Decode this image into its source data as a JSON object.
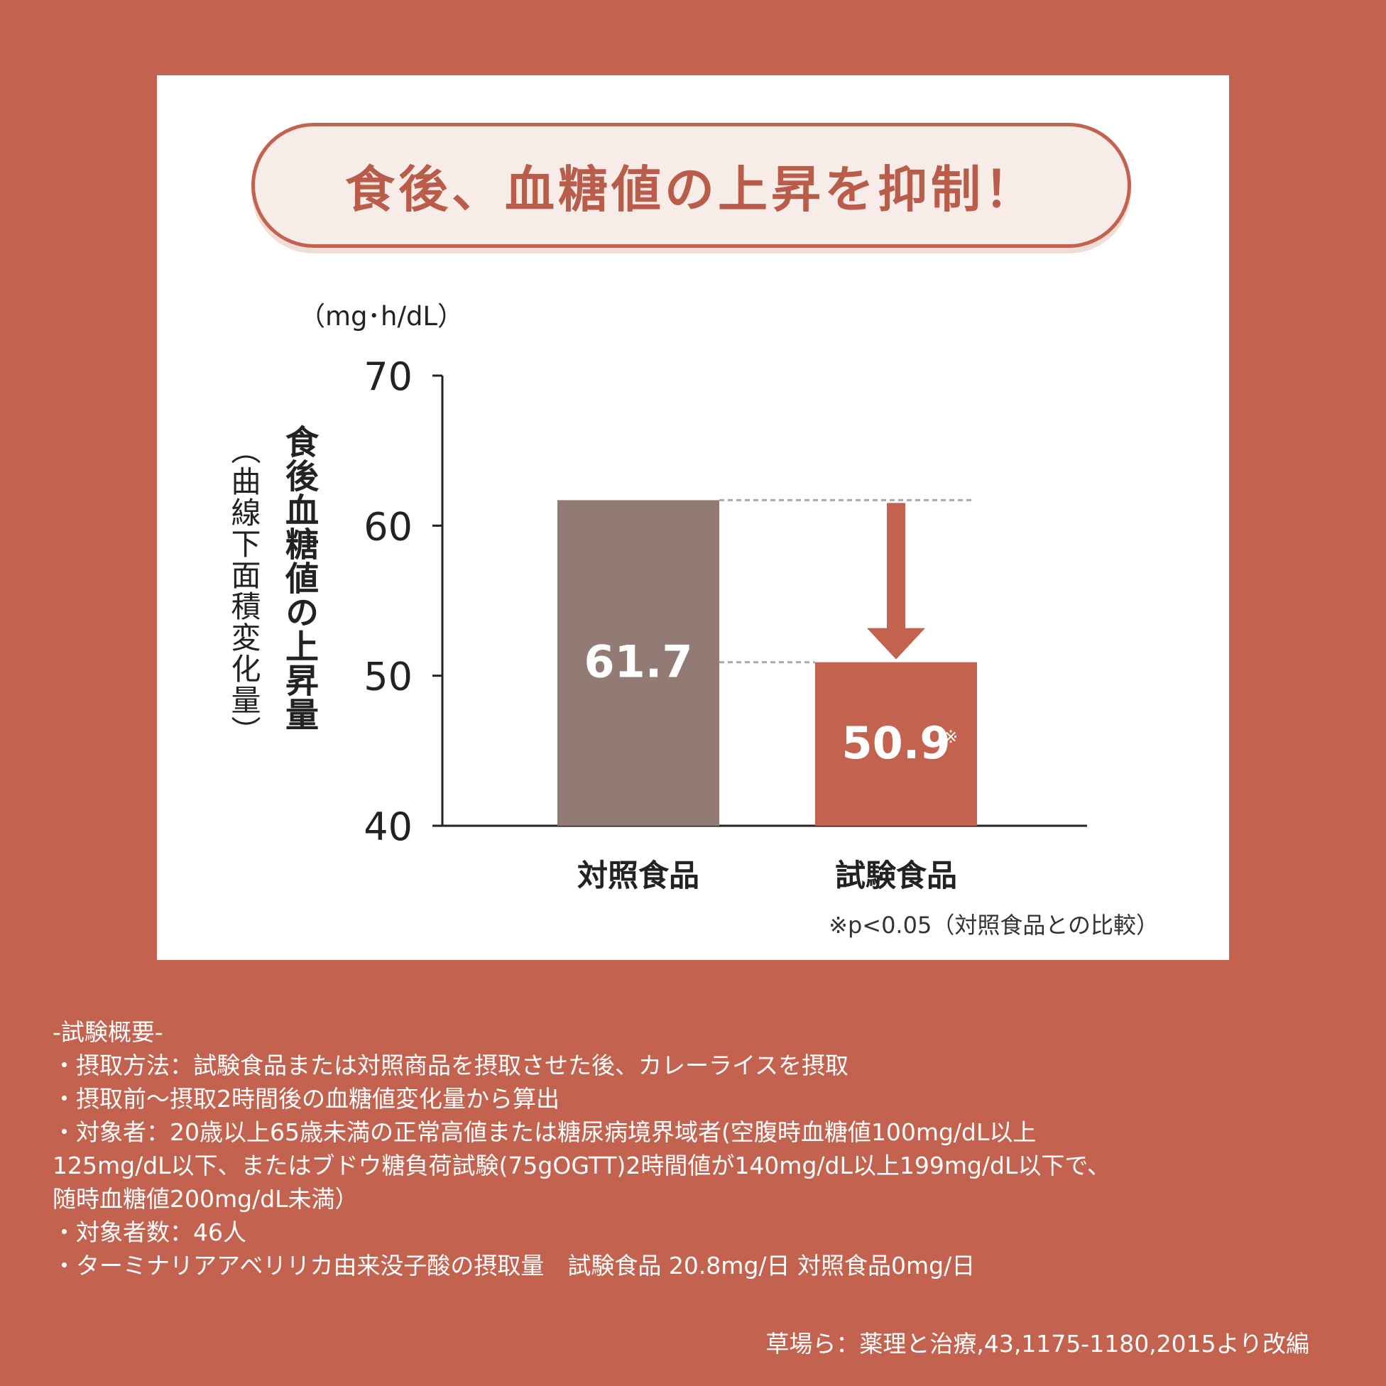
{
  "colors": {
    "background": "#c3624f",
    "control_bar": "#937b75",
    "test_bar": "#c3624f",
    "arrow": "#c3624f"
  },
  "headline": "食後、血糖値の上昇を抑制！",
  "chart_data": {
    "type": "bar",
    "unit": "（mg･h/dL）",
    "ylabel": "食後血糖値の上昇量",
    "ylabel_sub": "（曲線下面積変化量）",
    "categories": [
      "対照食品",
      "試験食品"
    ],
    "values": [
      61.7,
      50.9
    ],
    "value_labels": [
      "61.7",
      "50.9"
    ],
    "value_marks": [
      "",
      "※"
    ],
    "yticks": [
      40,
      50,
      60,
      70
    ],
    "ylim": [
      40,
      70
    ],
    "grid": false,
    "footnote": "※p<0.05（対照食品との比較）"
  },
  "notes": [
    "-試験概要-",
    "・摂取方法：試験食品または対照商品を摂取させた後、カレーライスを摂取",
    "・摂取前〜摂取2時間後の血糖値変化量から算出",
    "・対象者：20歳以上65歳未満の正常高値または糖尿病境界域者(空腹時血糖値100mg/dL以上",
    "125mg/dL以下、またはブドウ糖負荷試験(75gOGTT)2時間値が140mg/dL以上199mg/dL以下で、",
    "随時血糖値200mg/dL未満）",
    "・対象者数：46人",
    "・ターミナリアアベリリカ由来没子酸の摂取量　試験食品 20.8mg/日 対照食品0mg/日"
  ],
  "source": "草場ら：薬理と治療,43,1175-1180,2015より改編"
}
